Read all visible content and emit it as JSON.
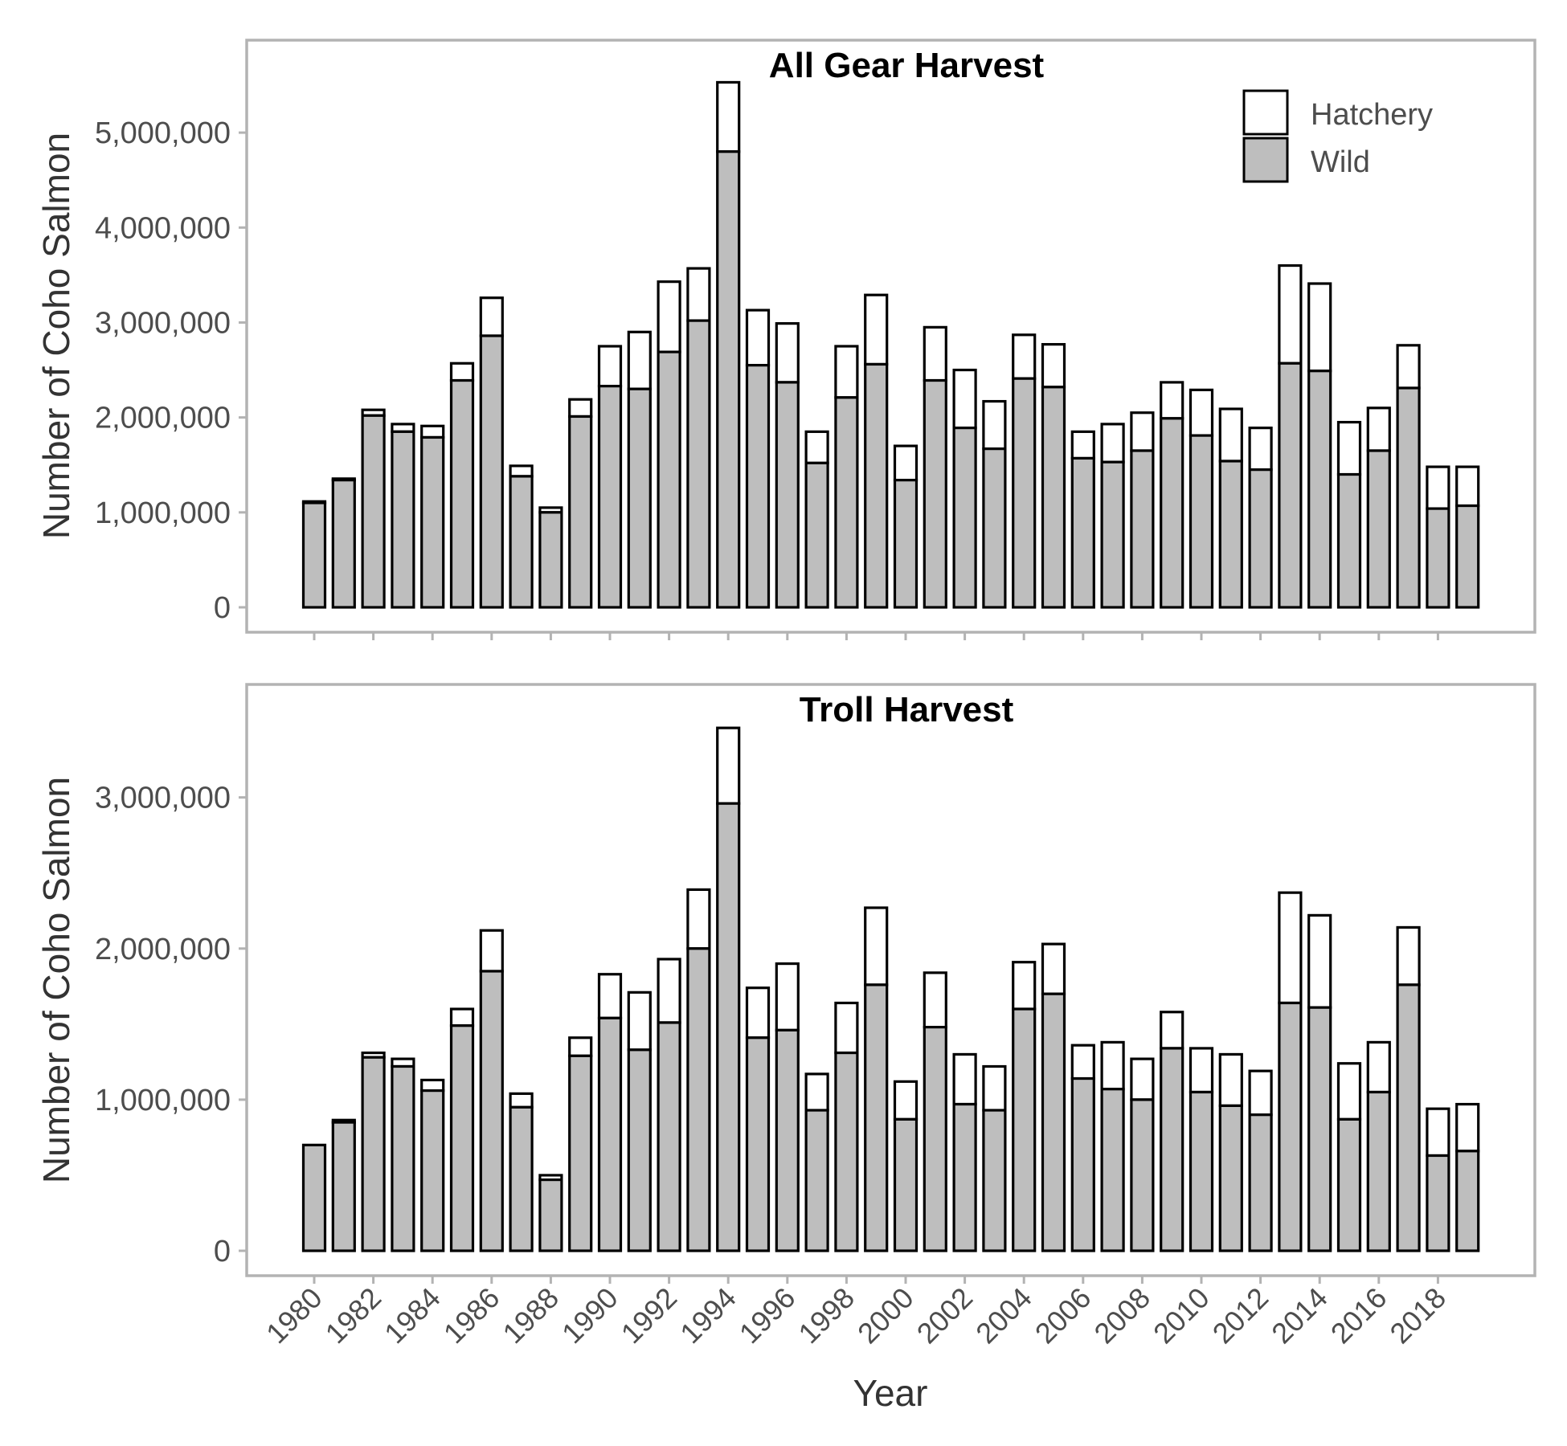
{
  "colors": {
    "wild_fill": "#bebebe",
    "hatchery_fill": "#ffffff",
    "bar_outline": "#000000",
    "panel_border": "#b3b3b3",
    "tick_text": "#4d4d4d"
  },
  "legend": {
    "placement": "top-right",
    "hatchery_label": "Hatchery",
    "wild_label": "Wild"
  },
  "xlabel": "Year",
  "ylabel": "Number of Coho Salmon",
  "years": [
    1980,
    1981,
    1982,
    1983,
    1984,
    1985,
    1986,
    1987,
    1988,
    1989,
    1990,
    1991,
    1992,
    1993,
    1994,
    1995,
    1996,
    1997,
    1998,
    1999,
    2000,
    2001,
    2002,
    2003,
    2004,
    2005,
    2006,
    2007,
    2008,
    2009,
    2010,
    2011,
    2012,
    2013,
    2014,
    2015,
    2016,
    2017,
    2018,
    2019
  ],
  "x_tick_labels": [
    "1980",
    "1982",
    "1984",
    "1986",
    "1988",
    "1990",
    "1992",
    "1994",
    "1996",
    "1998",
    "2000",
    "2002",
    "2004",
    "2006",
    "2008",
    "2010",
    "2012",
    "2014",
    "2016",
    "2018"
  ],
  "chart_data": [
    {
      "type": "bar",
      "stacked": true,
      "title": "All Gear Harvest",
      "ylim": [
        0,
        5500000
      ],
      "y_ticks": [
        0,
        1000000,
        2000000,
        3000000,
        4000000,
        5000000
      ],
      "y_tick_labels": [
        "0",
        "1,000,000",
        "2,000,000",
        "3,000,000",
        "4,000,000",
        "5,000,000"
      ],
      "series": [
        {
          "name": "Wild",
          "values": [
            1100000,
            1340000,
            2020000,
            1850000,
            1790000,
            2390000,
            2860000,
            1380000,
            1000000,
            2010000,
            2330000,
            2300000,
            2690000,
            3020000,
            4800000,
            2550000,
            2370000,
            1520000,
            2210000,
            2560000,
            1340000,
            2390000,
            1890000,
            1670000,
            2410000,
            2320000,
            1570000,
            1530000,
            1650000,
            1990000,
            1810000,
            1540000,
            1450000,
            2570000,
            2490000,
            1400000,
            1650000,
            2310000,
            1040000,
            1070000
          ]
        },
        {
          "name": "Hatchery",
          "values": [
            15000,
            15000,
            60000,
            80000,
            120000,
            180000,
            400000,
            110000,
            50000,
            180000,
            420000,
            600000,
            740000,
            550000,
            730000,
            580000,
            620000,
            330000,
            540000,
            730000,
            360000,
            560000,
            610000,
            500000,
            460000,
            450000,
            280000,
            400000,
            400000,
            380000,
            480000,
            550000,
            440000,
            1030000,
            920000,
            550000,
            450000,
            450000,
            440000,
            410000
          ]
        }
      ]
    },
    {
      "type": "bar",
      "stacked": true,
      "title": "Troll Harvest",
      "ylim": [
        0,
        3450000
      ],
      "y_ticks": [
        0,
        1000000,
        2000000,
        3000000
      ],
      "y_tick_labels": [
        "0",
        "1,000,000",
        "2,000,000",
        "3,000,000"
      ],
      "series": [
        {
          "name": "Wild",
          "values": [
            700000,
            850000,
            1280000,
            1220000,
            1060000,
            1490000,
            1850000,
            950000,
            470000,
            1290000,
            1540000,
            1330000,
            1510000,
            2000000,
            2960000,
            1410000,
            1460000,
            930000,
            1310000,
            1760000,
            870000,
            1480000,
            970000,
            930000,
            1600000,
            1700000,
            1140000,
            1070000,
            1000000,
            1340000,
            1050000,
            960000,
            900000,
            1640000,
            1610000,
            870000,
            1050000,
            1760000,
            630000,
            660000
          ]
        },
        {
          "name": "Hatchery",
          "values": [
            0,
            15000,
            30000,
            50000,
            70000,
            110000,
            270000,
            90000,
            30000,
            120000,
            290000,
            380000,
            420000,
            390000,
            500000,
            330000,
            440000,
            240000,
            330000,
            510000,
            250000,
            360000,
            330000,
            290000,
            310000,
            330000,
            220000,
            310000,
            270000,
            240000,
            290000,
            340000,
            290000,
            730000,
            610000,
            370000,
            330000,
            380000,
            310000,
            310000
          ]
        }
      ]
    }
  ]
}
